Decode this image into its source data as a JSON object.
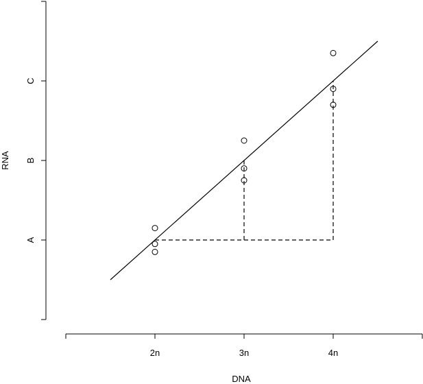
{
  "chart_data": {
    "type": "scatter",
    "title": "",
    "xlabel": "DNA",
    "ylabel": "RNA",
    "x_ticks": [
      {
        "value": 2,
        "label": "2n"
      },
      {
        "value": 3,
        "label": "3n"
      },
      {
        "value": 4,
        "label": "4n"
      }
    ],
    "y_ticks": [
      {
        "value": 1,
        "label": "A"
      },
      {
        "value": 2,
        "label": "B"
      },
      {
        "value": 3,
        "label": "C"
      }
    ],
    "xlim": [
      1,
      5
    ],
    "ylim": [
      0,
      4
    ],
    "points": [
      {
        "x": 2,
        "y": 1.15
      },
      {
        "x": 2,
        "y": 0.95
      },
      {
        "x": 2,
        "y": 0.85
      },
      {
        "x": 3,
        "y": 2.25
      },
      {
        "x": 3,
        "y": 1.9
      },
      {
        "x": 3,
        "y": 1.75
      },
      {
        "x": 4,
        "y": 3.35
      },
      {
        "x": 4,
        "y": 2.9
      },
      {
        "x": 4,
        "y": 2.7
      }
    ],
    "fit_line": {
      "x": [
        1.5,
        4.5
      ],
      "y": [
        0.5,
        3.5
      ]
    },
    "guides": [
      {
        "x": [
          2,
          4
        ],
        "y": [
          1,
          1
        ]
      },
      {
        "x": [
          3,
          3
        ],
        "y": [
          1,
          2
        ]
      },
      {
        "x": [
          4,
          4
        ],
        "y": [
          1,
          3
        ]
      }
    ],
    "grid": false,
    "legend": "none"
  }
}
